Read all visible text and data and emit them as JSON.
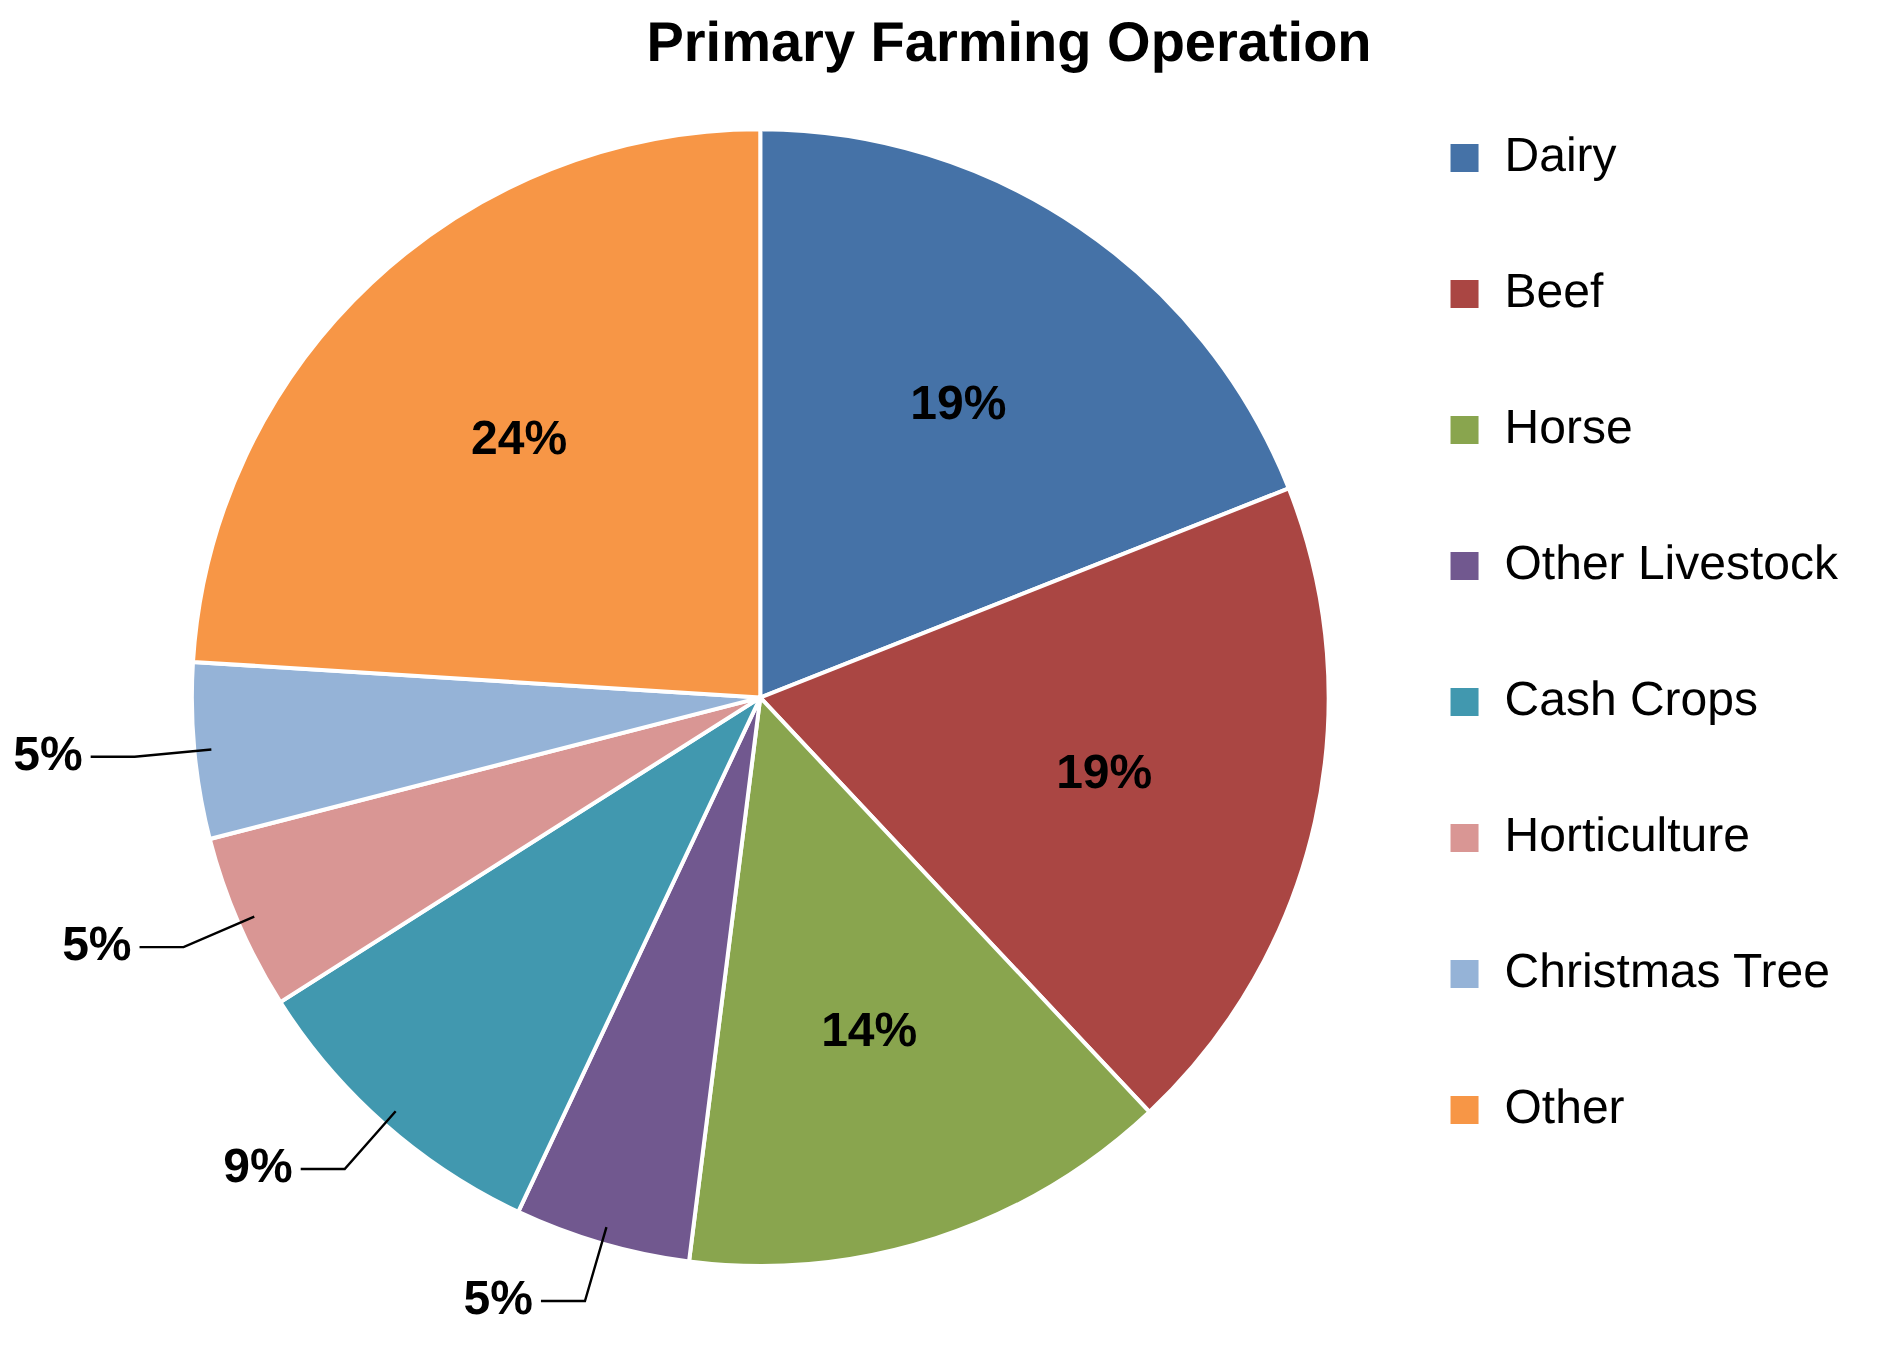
{
  "chart_data": {
    "type": "pie",
    "title": "Primary Farming Operation",
    "categories": [
      "Dairy",
      "Beef",
      "Horse",
      "Other Livestock",
      "Cash Crops",
      "Horticulture",
      "Christmas Tree",
      "Other"
    ],
    "values": [
      19,
      19,
      14,
      5,
      9,
      5,
      5,
      24
    ],
    "colors": [
      "#4572a7",
      "#aa4643",
      "#89a54e",
      "#71588f",
      "#4198af",
      "#d99694",
      "#95b3d7",
      "#f79646"
    ],
    "value_labels": [
      "19%",
      "19%",
      "14%",
      "5%",
      "9%",
      "5%",
      "5%",
      "24%"
    ],
    "legend": "right"
  }
}
